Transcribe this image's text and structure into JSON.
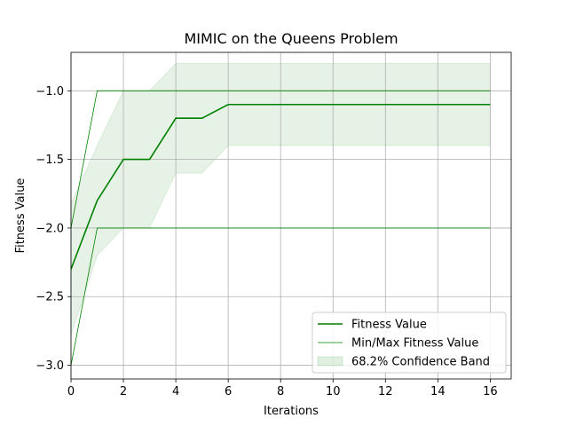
{
  "chart_data": {
    "type": "line",
    "title": "MIMIC on the Queens Problem",
    "xlabel": "Iterations",
    "ylabel": "Fitness Value",
    "xlim": [
      0,
      16.8
    ],
    "ylim": [
      -3.1,
      -0.72
    ],
    "xticks": [
      0,
      2,
      4,
      6,
      8,
      10,
      12,
      14,
      16
    ],
    "xtick_labels": [
      "0",
      "2",
      "4",
      "6",
      "8",
      "10",
      "12",
      "14",
      "16"
    ],
    "yticks": [
      -3.0,
      -2.5,
      -2.0,
      -1.5,
      -1.0
    ],
    "ytick_labels": [
      "−3.0",
      "−2.5",
      "−2.0",
      "−1.5",
      "−1.0"
    ],
    "grid": true,
    "legend_position": "bottom-right",
    "x": [
      0,
      1,
      2,
      3,
      4,
      5,
      6,
      7,
      8,
      9,
      10,
      11,
      12,
      13,
      14,
      15,
      16
    ],
    "series": [
      {
        "name": "Fitness Value",
        "kind": "line",
        "color": "#008000",
        "values": [
          -2.3,
          -1.8,
          -1.5,
          -1.5,
          -1.2,
          -1.2,
          -1.1,
          -1.1,
          -1.1,
          -1.1,
          -1.1,
          -1.1,
          -1.1,
          -1.1,
          -1.1,
          -1.1,
          -1.1
        ]
      },
      {
        "name": "Min/Max Fitness Value",
        "kind": "minmax",
        "color": "#008000",
        "min": [
          -3.0,
          -2.0,
          -2.0,
          -2.0,
          -2.0,
          -2.0,
          -2.0,
          -2.0,
          -2.0,
          -2.0,
          -2.0,
          -2.0,
          -2.0,
          -2.0,
          -2.0,
          -2.0,
          -2.0
        ],
        "max": [
          -2.0,
          -1.0,
          -1.0,
          -1.0,
          -1.0,
          -1.0,
          -1.0,
          -1.0,
          -1.0,
          -1.0,
          -1.0,
          -1.0,
          -1.0,
          -1.0,
          -1.0,
          -1.0,
          -1.0
        ]
      },
      {
        "name": "68.2% Confidence Band",
        "kind": "band",
        "color": "#008000",
        "lower": [
          -2.78,
          -2.2,
          -2.0,
          -2.0,
          -1.6,
          -1.6,
          -1.4,
          -1.4,
          -1.4,
          -1.4,
          -1.4,
          -1.4,
          -1.4,
          -1.4,
          -1.4,
          -1.4,
          -1.4
        ],
        "upper": [
          -1.82,
          -1.4,
          -1.0,
          -1.0,
          -0.8,
          -0.8,
          -0.8,
          -0.8,
          -0.8,
          -0.8,
          -0.8,
          -0.8,
          -0.8,
          -0.8,
          -0.8,
          -0.8,
          -0.8
        ]
      }
    ]
  }
}
